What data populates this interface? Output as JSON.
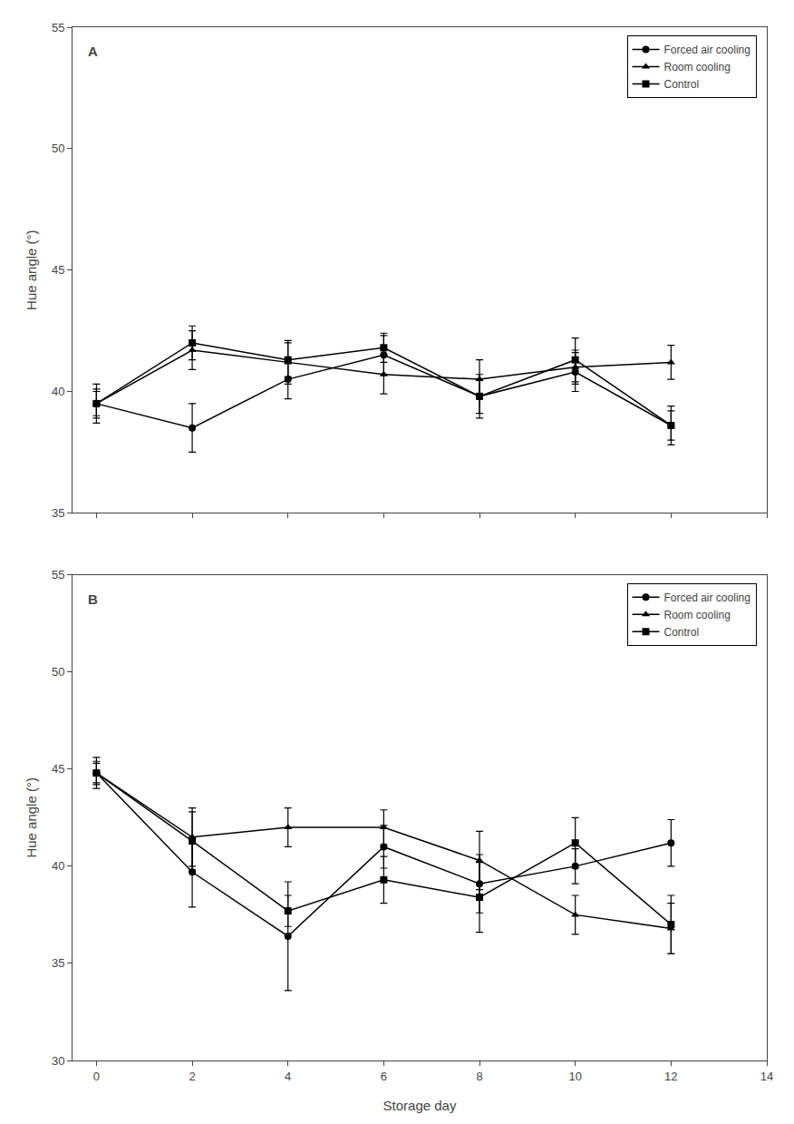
{
  "chart_data": [
    {
      "type": "line",
      "x": [
        0,
        2,
        4,
        6,
        8,
        10,
        12
      ],
      "series": [
        {
          "name": "Forced air cooling",
          "color": "#000000",
          "marker": "circle",
          "line_style": "solid",
          "values": [
            39.5,
            38.5,
            40.5,
            41.5,
            39.8,
            40.8,
            38.6
          ],
          "errors": [
            0.8,
            1.0,
            0.8,
            0.8,
            0.7,
            0.8,
            0.8
          ]
        },
        {
          "name": "Room cooling",
          "color": "#000000",
          "marker": "triangle-up",
          "line_style": "solid",
          "values": [
            39.5,
            41.7,
            41.2,
            40.7,
            40.5,
            41.0,
            41.2
          ],
          "errors": [
            0.6,
            0.8,
            0.9,
            0.8,
            0.8,
            0.7,
            0.7
          ]
        },
        {
          "name": "Control",
          "color": "#000000",
          "marker": "square",
          "line_style": "solid",
          "values": [
            39.5,
            42.0,
            41.3,
            41.8,
            39.8,
            41.3,
            38.6
          ],
          "errors": [
            0.5,
            0.7,
            0.7,
            0.6,
            0.9,
            0.9,
            0.6
          ]
        }
      ],
      "xlim": [
        -0.5,
        14
      ],
      "xticks": [
        0,
        2,
        4,
        6,
        8,
        10,
        12,
        14
      ],
      "ylim": [
        35,
        55
      ],
      "yticks": [
        35,
        40,
        45,
        50,
        55
      ],
      "ylabel": "Hue angle (°)",
      "annotations": [
        "A"
      ],
      "legend": "upper right",
      "grid": false,
      "tick_labels": "y"
    },
    {
      "type": "line",
      "x": [
        0,
        2,
        4,
        6,
        8,
        10,
        12
      ],
      "series": [
        {
          "name": "Forced air cooling",
          "color": "#000000",
          "marker": "circle",
          "line_style": "solid",
          "values": [
            44.8,
            39.7,
            36.4,
            41.0,
            39.1,
            40.0,
            41.2
          ],
          "errors": [
            0.8,
            1.8,
            2.8,
            1.1,
            1.5,
            0.9,
            1.2
          ]
        },
        {
          "name": "Room cooling",
          "color": "#000000",
          "marker": "triangle-up",
          "line_style": "solid",
          "values": [
            44.8,
            41.5,
            42.0,
            42.0,
            40.3,
            37.5,
            36.8
          ],
          "errors": [
            0.5,
            1.5,
            1.0,
            0.9,
            1.5,
            1.0,
            1.3
          ]
        },
        {
          "name": "Control",
          "color": "#000000",
          "marker": "square",
          "line_style": "solid",
          "values": [
            44.8,
            41.3,
            37.7,
            39.3,
            38.4,
            41.2,
            37.0
          ],
          "errors": [
            0.6,
            1.5,
            0.8,
            1.2,
            1.8,
            1.3,
            1.5
          ]
        }
      ],
      "xlim": [
        -0.5,
        14
      ],
      "xticks": [
        0,
        2,
        4,
        6,
        8,
        10,
        12,
        14
      ],
      "ylim": [
        30,
        55
      ],
      "yticks": [
        30,
        35,
        40,
        45,
        50,
        55
      ],
      "xlabel": "Storage day",
      "ylabel": "Hue angle (°)",
      "annotations": [
        "B"
      ],
      "legend": "upper right",
      "grid": false
    }
  ]
}
